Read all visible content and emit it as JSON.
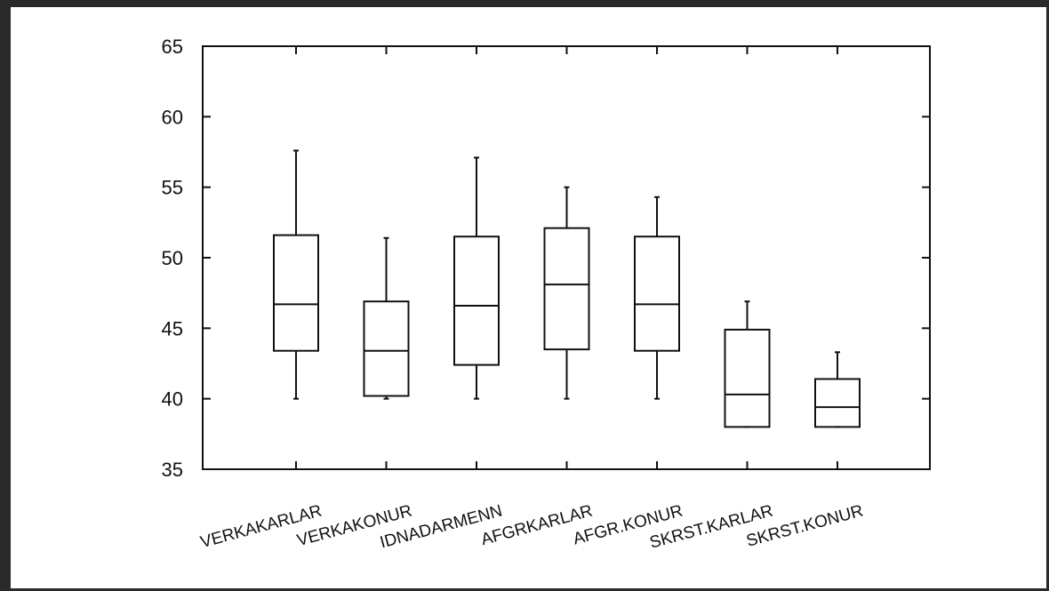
{
  "chart_data": {
    "type": "boxplot",
    "title": "",
    "xlabel": "",
    "ylabel": "",
    "ylim": [
      35,
      65
    ],
    "yticks": [
      35,
      40,
      45,
      50,
      55,
      60,
      65
    ],
    "grid": false,
    "categories": [
      "VERKAKARLAR",
      "VERKAKONUR",
      "IDNADARMENN",
      "AFGRKARLAR",
      "AFGR.KONUR",
      "SKRST.KARLAR",
      "SKRST.KONUR"
    ],
    "boxes": [
      {
        "category": "VERKAKARLAR",
        "min": 40.0,
        "q1": 43.4,
        "median": 46.7,
        "q3": 51.6,
        "max": 57.6
      },
      {
        "category": "VERKAKONUR",
        "min": 40.0,
        "q1": 40.2,
        "median": 43.4,
        "q3": 46.9,
        "max": 51.4
      },
      {
        "category": "IDNADARMENN",
        "min": 40.0,
        "q1": 42.4,
        "median": 46.6,
        "q3": 51.5,
        "max": 57.1
      },
      {
        "category": "AFGRKARLAR",
        "min": 40.0,
        "q1": 43.5,
        "median": 48.1,
        "q3": 52.1,
        "max": 55.0
      },
      {
        "category": "AFGR.KONUR",
        "min": 40.0,
        "q1": 43.4,
        "median": 46.7,
        "q3": 51.5,
        "max": 54.3
      },
      {
        "category": "SKRST.KARLAR",
        "min": 38.0,
        "q1": 38.0,
        "median": 40.3,
        "q3": 44.9,
        "max": 46.9
      },
      {
        "category": "SKRST.KONUR",
        "min": 38.0,
        "q1": 38.0,
        "median": 39.4,
        "q3": 41.4,
        "max": 43.3
      }
    ]
  }
}
